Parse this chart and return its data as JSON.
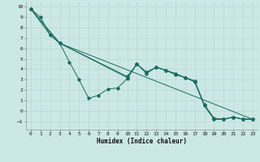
{
  "xlabel": "Humidex (Indice chaleur)",
  "ylabel": "",
  "xlim": [
    -0.5,
    23.5
  ],
  "ylim": [
    -1.8,
    10.5
  ],
  "xticks": [
    0,
    1,
    2,
    3,
    4,
    5,
    6,
    7,
    8,
    9,
    10,
    11,
    12,
    13,
    14,
    15,
    16,
    17,
    18,
    19,
    20,
    21,
    22,
    23
  ],
  "yticks": [
    -1,
    0,
    1,
    2,
    3,
    4,
    5,
    6,
    7,
    8,
    9,
    10
  ],
  "background_color": "#cce8e5",
  "grid_color": "#b8d8d4",
  "line_color": "#1a6b60",
  "line1_x": [
    0,
    1,
    2,
    3,
    4,
    5,
    6,
    7,
    8,
    9,
    10,
    11,
    12,
    13,
    14,
    15,
    16,
    17,
    18,
    19,
    20,
    21,
    22,
    23
  ],
  "line1_y": [
    9.8,
    9.0,
    7.3,
    6.5,
    4.7,
    3.0,
    1.2,
    1.5,
    2.1,
    2.2,
    3.1,
    4.5,
    3.6,
    4.2,
    3.9,
    3.5,
    3.2,
    2.8,
    0.5,
    -0.8,
    -0.8,
    -0.6,
    -0.8,
    -0.8
  ],
  "line2_x": [
    0,
    2,
    3,
    10,
    11,
    12,
    13,
    14,
    15,
    16,
    17,
    18,
    19,
    20,
    21,
    22,
    23
  ],
  "line2_y": [
    9.8,
    7.3,
    6.5,
    3.3,
    4.5,
    3.7,
    4.2,
    3.9,
    3.6,
    3.2,
    2.9,
    0.6,
    -0.7,
    -0.8,
    -0.6,
    -0.8,
    -0.8
  ],
  "line3_x": [
    0,
    3,
    10,
    11,
    12,
    13,
    14,
    15,
    16,
    17,
    18,
    19,
    20,
    21,
    22,
    23
  ],
  "line3_y": [
    9.8,
    6.5,
    3.2,
    4.5,
    3.7,
    4.2,
    3.9,
    3.5,
    3.2,
    2.8,
    0.5,
    -0.8,
    -0.8,
    -0.6,
    -0.8,
    -0.8
  ],
  "line4_x": [
    0,
    3,
    23
  ],
  "line4_y": [
    9.8,
    6.5,
    -0.8
  ]
}
